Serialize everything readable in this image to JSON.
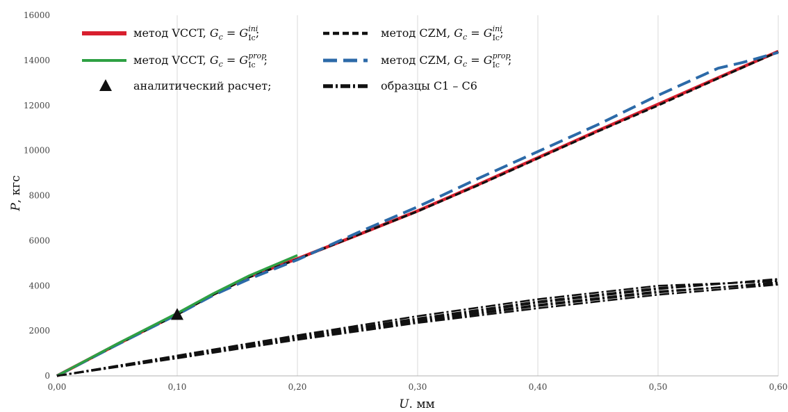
{
  "chart_data": {
    "type": "line",
    "xlabel": {
      "var": "U",
      "unit": ". мм"
    },
    "ylabel": {
      "var": "P",
      "unit": ", кгс"
    },
    "xlim": [
      0,
      0.6
    ],
    "ylim": [
      0,
      16000
    ],
    "x_ticks": [
      "0,00",
      "0,10",
      "0,20",
      "0,30",
      "0,40",
      "0,50",
      "0,60"
    ],
    "x_tick_values": [
      0,
      0.1,
      0.2,
      0.3,
      0.4,
      0.5,
      0.6
    ],
    "y_ticks": [
      "0",
      "2000",
      "4000",
      "6000",
      "8000",
      "10000",
      "12000",
      "14000",
      "16000"
    ],
    "y_tick_values": [
      0,
      2000,
      4000,
      6000,
      8000,
      10000,
      12000,
      14000,
      16000
    ],
    "grid": {
      "vertical": true,
      "horizontal": false
    },
    "legend_position": "top-left",
    "series": [
      {
        "name": "метод VCCT, Gc = GIc ini",
        "label": {
          "method": "метод VCCT,",
          "G": "G",
          "c": "c",
          "eq": " = ",
          "sub": "Ic",
          "sup": "ini",
          "tail": ";"
        },
        "color": "#d81f2e",
        "style": "solid",
        "x": [
          0,
          0.05,
          0.1,
          0.13,
          0.16,
          0.2,
          0.25,
          0.3,
          0.35,
          0.4,
          0.45,
          0.5,
          0.55,
          0.6
        ],
        "y": [
          0,
          1400,
          2750,
          3620,
          4400,
          5200,
          6250,
          7320,
          8480,
          9680,
          10880,
          12050,
          13230,
          14400
        ]
      },
      {
        "name": "метод VCCT, Gc = GIc prop",
        "label": {
          "method": "метод VCCT,",
          "G": "G",
          "c": "c",
          "eq": " = ",
          "sub": "Ic",
          "sup": "prop",
          "tail": ";"
        },
        "color": "#2ea043",
        "style": "solid",
        "x": [
          0,
          0.05,
          0.1,
          0.13,
          0.16,
          0.2
        ],
        "y": [
          0,
          1420,
          2780,
          3650,
          4450,
          5350
        ]
      },
      {
        "name": "метод CZM, Gc = GIc ini",
        "label": {
          "method": "метод CZM,",
          "G": "G",
          "c": "c",
          "eq": " = ",
          "sub": "Ic",
          "sup": "ini",
          "tail": ";"
        },
        "color": "#111111",
        "style": "short-dash",
        "x": [
          0,
          0.05,
          0.1,
          0.13,
          0.16,
          0.2,
          0.25,
          0.3,
          0.35,
          0.4,
          0.45,
          0.5,
          0.55,
          0.6
        ],
        "y": [
          0,
          1380,
          2720,
          3600,
          4380,
          5180,
          6250,
          7300,
          8450,
          9650,
          10850,
          12000,
          13200,
          14380
        ]
      },
      {
        "name": "метод CZM, Gc = GIc prop",
        "label": {
          "method": "метод CZM,",
          "G": "G",
          "c": "c",
          "eq": " = ",
          "sub": "Ic",
          "sup": "prop",
          "tail": ";"
        },
        "color": "#2c6aa8",
        "style": "long-dash",
        "x": [
          0,
          0.05,
          0.1,
          0.13,
          0.16,
          0.2,
          0.25,
          0.3,
          0.35,
          0.4,
          0.45,
          0.5,
          0.55,
          0.57,
          0.6
        ],
        "y": [
          0,
          1380,
          2720,
          3580,
          4300,
          5150,
          6350,
          7500,
          8750,
          9950,
          11150,
          12450,
          13650,
          13900,
          14350
        ]
      },
      {
        "name": "образцы С1 – С6",
        "label": {
          "text": "образцы С1 – С6"
        },
        "color": "#111111",
        "style": "dash-dot",
        "samples": [
          {
            "x": [
              0,
              0.1,
              0.2,
              0.3,
              0.4,
              0.5,
              0.6
            ],
            "y": [
              0,
              850,
              1700,
              2500,
              3250,
              3850,
              4300
            ]
          },
          {
            "x": [
              0,
              0.1,
              0.2,
              0.3,
              0.4,
              0.5,
              0.6
            ],
            "y": [
              0,
              900,
              1800,
              2650,
              3400,
              4000,
              4200
            ]
          },
          {
            "x": [
              0,
              0.1,
              0.2,
              0.3,
              0.4,
              0.5,
              0.6
            ],
            "y": [
              0,
              800,
              1650,
              2400,
              3100,
              3700,
              4150
            ]
          },
          {
            "x": [
              0,
              0.1,
              0.2,
              0.3,
              0.4,
              0.5,
              0.6
            ],
            "y": [
              0,
              780,
              1600,
              2350,
              3000,
              3600,
              4050
            ]
          },
          {
            "x": [
              0,
              0.1,
              0.2,
              0.3,
              0.4,
              0.5,
              0.6
            ],
            "y": [
              0,
              870,
              1750,
              2550,
              3300,
              3900,
              4250
            ]
          },
          {
            "x": [
              0,
              0.1,
              0.2,
              0.3,
              0.4,
              0.5,
              0.6
            ],
            "y": [
              0,
              820,
              1700,
              2450,
              3150,
              3750,
              4100
            ]
          }
        ]
      }
    ],
    "markers": [
      {
        "name": "аналитический расчет;",
        "label": {
          "text": "аналитический расчет;"
        },
        "shape": "triangle",
        "color": "#111111",
        "x": 0.1,
        "y": 2700
      }
    ]
  }
}
